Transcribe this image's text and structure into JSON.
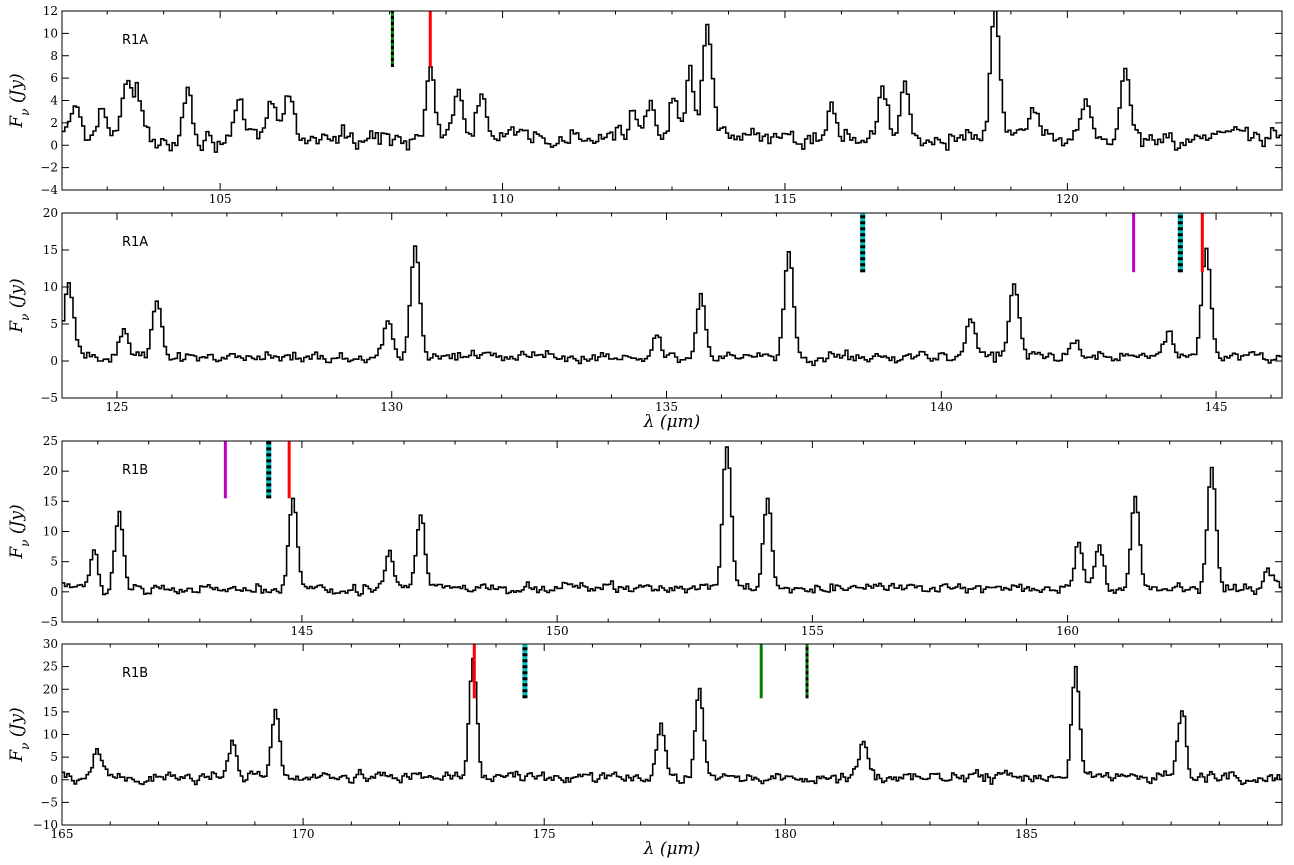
{
  "figure": {
    "xlabel": "λ (μm)",
    "ylabel": "F_ν (Jy)"
  },
  "chart_data": [
    {
      "type": "line",
      "label": "R1A",
      "xlabel": "",
      "ylabel": "Fν (Jy)",
      "xlim": [
        102.2,
        123.8
      ],
      "ylim": [
        -4,
        12
      ],
      "xticks": [
        105,
        110,
        115,
        120
      ],
      "yticks": [
        -4,
        -2,
        0,
        2,
        4,
        6,
        8,
        10,
        12
      ],
      "noise": 0.9,
      "peaks": [
        [
          102.4,
          3
        ],
        [
          102.9,
          3.5
        ],
        [
          103.3,
          4.5
        ],
        [
          103.5,
          4
        ],
        [
          104.4,
          4.5
        ],
        [
          105.3,
          2.5
        ],
        [
          105.9,
          3
        ],
        [
          106.2,
          4.2
        ],
        [
          108.7,
          6.5
        ],
        [
          109.2,
          4
        ],
        [
          109.6,
          4
        ],
        [
          112.3,
          3
        ],
        [
          112.6,
          3.5
        ],
        [
          113.0,
          4
        ],
        [
          113.3,
          6
        ],
        [
          113.6,
          10
        ],
        [
          115.8,
          3
        ],
        [
          116.7,
          4.5
        ],
        [
          117.1,
          5
        ],
        [
          118.7,
          11.8
        ],
        [
          119.4,
          2.5
        ],
        [
          120.3,
          3
        ],
        [
          121.0,
          6.5
        ]
      ],
      "markers": [
        {
          "x": 108.05,
          "style": "green-black",
          "y0": 7,
          "y1": 12
        },
        {
          "x": 108.72,
          "style": "red",
          "y0": 7,
          "y1": 12
        }
      ]
    },
    {
      "type": "line",
      "label": "R1A",
      "xlabel": "λ (μm)",
      "ylabel": "Fν (Jy)",
      "xlim": [
        124.0,
        146.2
      ],
      "ylim": [
        -5,
        20
      ],
      "xticks": [
        125,
        130,
        135,
        140,
        145
      ],
      "yticks": [
        -5,
        0,
        5,
        10,
        15,
        20
      ],
      "noise": 0.8,
      "peaks": [
        [
          124.1,
          10
        ],
        [
          125.1,
          3.5
        ],
        [
          125.7,
          7.5
        ],
        [
          129.9,
          4
        ],
        [
          130.4,
          15
        ],
        [
          134.8,
          3
        ],
        [
          135.6,
          8.5
        ],
        [
          137.2,
          14.5
        ],
        [
          140.5,
          5.5
        ],
        [
          141.3,
          10
        ],
        [
          142.4,
          2.5
        ],
        [
          144.1,
          3
        ],
        [
          144.8,
          14.5
        ]
      ],
      "markers": [
        {
          "x": 138.57,
          "style": "cyan-black",
          "y0": 12,
          "y1": 20
        },
        {
          "x": 143.5,
          "style": "magenta",
          "y0": 12,
          "y1": 20
        },
        {
          "x": 144.35,
          "style": "cyan-black",
          "y0": 12,
          "y1": 20
        },
        {
          "x": 144.75,
          "style": "red",
          "y0": 12,
          "y1": 20
        }
      ]
    },
    {
      "type": "line",
      "label": "R1B",
      "xlabel": "",
      "ylabel": "Fν (Jy)",
      "xlim": [
        140.3,
        164.2
      ],
      "ylim": [
        -5,
        25
      ],
      "xticks": [
        145,
        150,
        155,
        160
      ],
      "yticks": [
        -5,
        0,
        5,
        10,
        15,
        20,
        25
      ],
      "noise": 0.9,
      "peaks": [
        [
          140.9,
          6.5
        ],
        [
          141.4,
          12
        ],
        [
          144.8,
          15.5
        ],
        [
          146.7,
          6
        ],
        [
          147.3,
          12
        ],
        [
          153.3,
          23
        ],
        [
          154.1,
          15
        ],
        [
          160.2,
          8
        ],
        [
          160.6,
          7
        ],
        [
          161.3,
          15.5
        ],
        [
          162.8,
          19.5
        ],
        [
          163.9,
          3
        ]
      ],
      "markers": [
        {
          "x": 143.5,
          "style": "magenta",
          "y0": 15.5,
          "y1": 25
        },
        {
          "x": 144.35,
          "style": "cyan-black",
          "y0": 15.5,
          "y1": 25
        },
        {
          "x": 144.75,
          "style": "red",
          "y0": 15.5,
          "y1": 25
        }
      ]
    },
    {
      "type": "line",
      "label": "R1B",
      "xlabel": "λ (μm)",
      "ylabel": "Fν (Jy)",
      "xlim": [
        165.0,
        190.3
      ],
      "ylim": [
        -10,
        30
      ],
      "xticks": [
        165,
        170,
        175,
        180,
        185
      ],
      "yticks": [
        -10,
        -5,
        0,
        5,
        10,
        15,
        20,
        25,
        30
      ],
      "noise": 1.4,
      "peaks": [
        [
          165.7,
          5.5
        ],
        [
          168.5,
          8
        ],
        [
          169.4,
          15
        ],
        [
          173.5,
          25
        ],
        [
          177.4,
          11
        ],
        [
          178.2,
          20
        ],
        [
          181.6,
          9
        ],
        [
          186.0,
          23.5
        ],
        [
          188.2,
          16
        ]
      ],
      "markers": [
        {
          "x": 173.55,
          "style": "red",
          "y0": 18,
          "y1": 30
        },
        {
          "x": 174.6,
          "style": "cyan-black",
          "y0": 18,
          "y1": 30
        },
        {
          "x": 179.5,
          "style": "green",
          "y0": 18,
          "y1": 30
        },
        {
          "x": 180.45,
          "style": "green-black",
          "y0": 18,
          "y1": 30
        }
      ]
    }
  ]
}
